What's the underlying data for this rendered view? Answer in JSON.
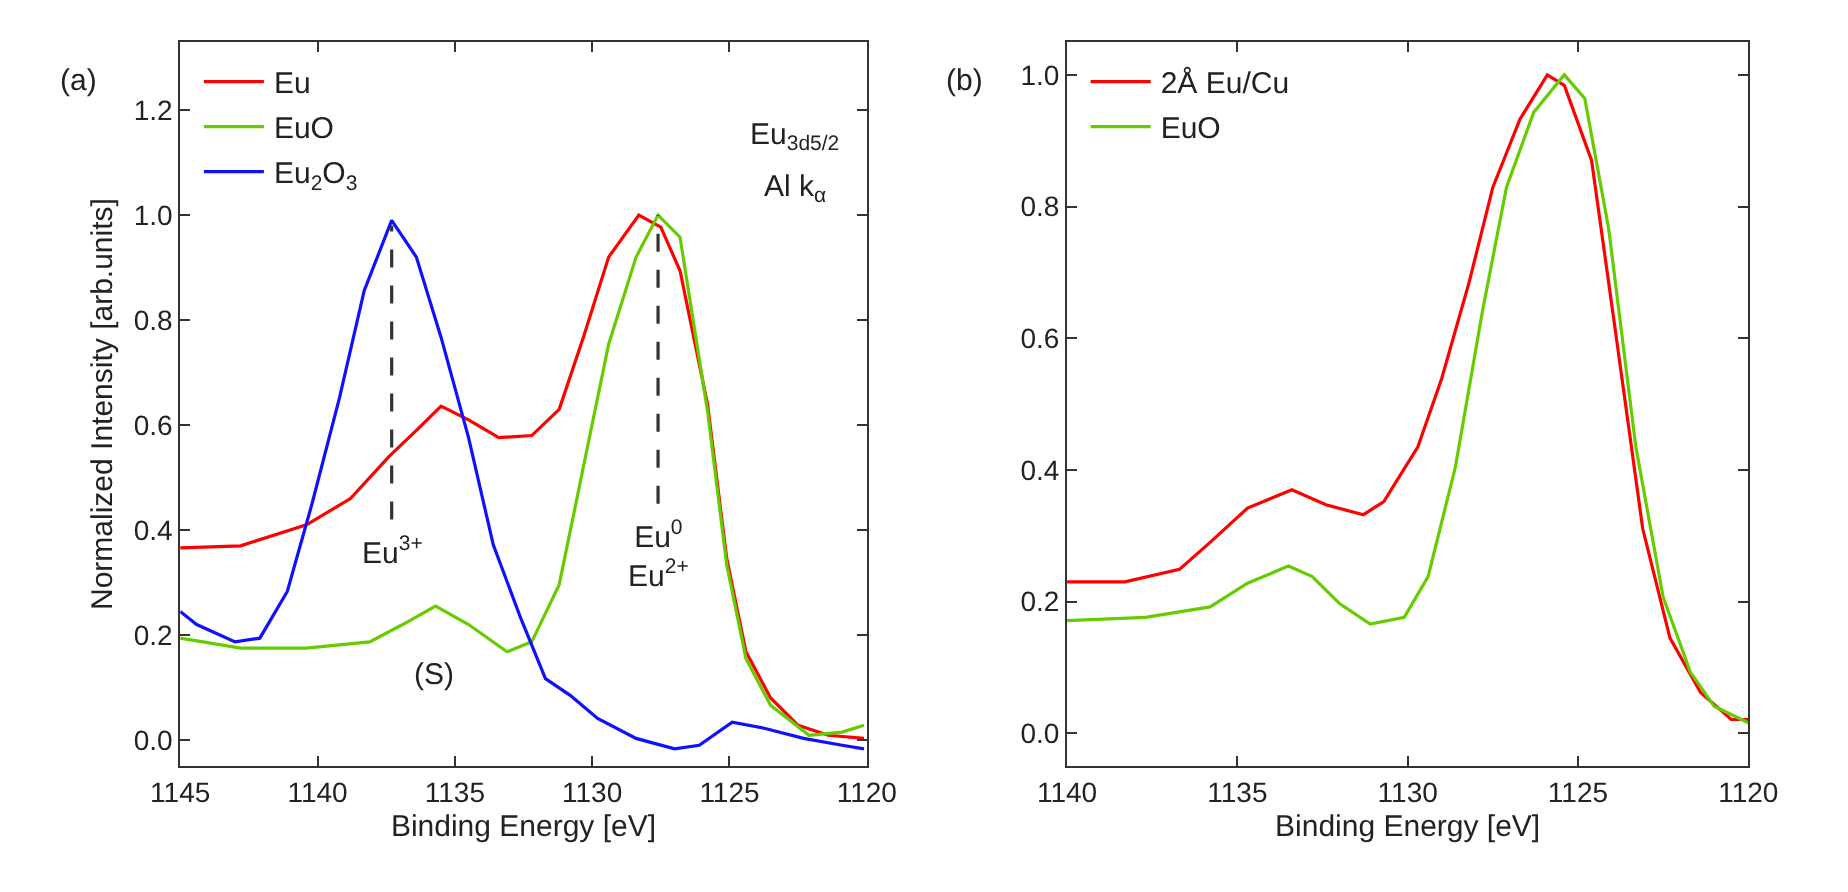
{
  "chart_data": [
    {
      "type": "line",
      "xlabel": "Binding Energy [eV]",
      "ylabel": "Normalized Intensity [arb.units]",
      "xlim": [
        1145,
        1120
      ],
      "ylim": [
        -0.05,
        1.33
      ],
      "xticks": [
        1145,
        1140,
        1135,
        1130,
        1125,
        1120
      ],
      "yticks": [
        {
          "value": 0,
          "label": "0.0"
        },
        {
          "value": 0.2,
          "label": "0.2"
        },
        {
          "value": 0.4,
          "label": "0.4"
        },
        {
          "value": 0.6,
          "label": "0.6"
        },
        {
          "value": 0.8,
          "label": "0.8"
        },
        {
          "value": 1.0,
          "label": "1.0"
        },
        {
          "value": 1.2,
          "label": "1.2"
        }
      ],
      "legend": "top left",
      "marker": "none",
      "series": [
        {
          "name": "Eu",
          "color": "#ff0000",
          "x": [
            1145,
            1142.8,
            1140.4,
            1138.8,
            1137.4,
            1136.4,
            1135.5,
            1134.5,
            1133.4,
            1132.2,
            1131.2,
            1130.3,
            1129.4,
            1128.3,
            1127.5,
            1126.8,
            1125.8,
            1125.1,
            1124.4,
            1123.5,
            1122.5,
            1121.4,
            1120.1
          ],
          "values": [
            0.366,
            0.37,
            0.41,
            0.46,
            0.54,
            0.59,
            0.636,
            0.61,
            0.576,
            0.58,
            0.63,
            0.77,
            0.92,
            1.0,
            0.977,
            0.894,
            0.64,
            0.346,
            0.168,
            0.08,
            0.028,
            0.009,
            0.003
          ]
        },
        {
          "name": "EuO",
          "color": "#66cc00",
          "x": [
            1145,
            1142.8,
            1140.4,
            1138.1,
            1136.9,
            1135.7,
            1134.5,
            1133.1,
            1132.2,
            1131.2,
            1130.3,
            1129.4,
            1128.4,
            1127.6,
            1126.8,
            1125.8,
            1125.1,
            1124.4,
            1123.5,
            1122.1,
            1120.9,
            1120.1
          ],
          "values": [
            0.194,
            0.175,
            0.175,
            0.187,
            0.22,
            0.255,
            0.22,
            0.168,
            0.187,
            0.296,
            0.525,
            0.754,
            0.92,
            1.0,
            0.958,
            0.627,
            0.334,
            0.155,
            0.066,
            0.009,
            0.015,
            0.028
          ]
        },
        {
          "name": "Eu$_{2}$O$_{3}$",
          "color": "#1010ff",
          "x": [
            1145,
            1144.4,
            1143,
            1142.1,
            1141.1,
            1140.2,
            1139.2,
            1138.3,
            1137.3,
            1136.4,
            1135.5,
            1134.5,
            1133.6,
            1132.6,
            1131.7,
            1130.8,
            1129.8,
            1128.4,
            1127,
            1126.1,
            1124.9,
            1123.7,
            1122.3,
            1120.9,
            1120.1
          ],
          "values": [
            0.245,
            0.22,
            0.187,
            0.194,
            0.283,
            0.45,
            0.652,
            0.856,
            0.99,
            0.92,
            0.767,
            0.576,
            0.372,
            0.232,
            0.117,
            0.085,
            0.041,
            0.003,
            -0.017,
            -0.01,
            0.034,
            0.022,
            0.003,
            -0.01,
            -0.017
          ]
        },
        {
          "name": "Eu$^{3+}$",
          "color": "#333333",
          "line_style": "dashed",
          "x": [
            1137.3,
            1137.3
          ],
          "values": [
            0.42,
            0.98
          ]
        },
        {
          "name": "Eu$^{0}$\nEu$^{2+}$",
          "color": "#333333",
          "line_style": "dashed",
          "x": [
            1127.6,
            1127.6
          ],
          "values": [
            0.45,
            1.0
          ]
        }
      ],
      "annotations": [
        "(a)",
        "(S)",
        "Eu$_{3d5/2}$",
        "Al k$_{α}$"
      ]
    },
    {
      "type": "line",
      "xlabel": "Binding Energy [eV]",
      "xlim": [
        1140,
        1120
      ],
      "ylim": [
        -0.05,
        1.05
      ],
      "xticks": [
        1140,
        1135,
        1130,
        1125,
        1120
      ],
      "yticks": [
        {
          "value": 0,
          "label": "0.0"
        },
        {
          "value": 0.2,
          "label": "0.2"
        },
        {
          "value": 0.4,
          "label": "0.4"
        },
        {
          "value": 0.6,
          "label": "0.6"
        },
        {
          "value": 0.8,
          "label": "0.8"
        },
        {
          "value": 1.0,
          "label": "1.0"
        }
      ],
      "legend": "top left",
      "marker": "none",
      "series": [
        {
          "name": "2Å Eu/Cu",
          "color": "#ff0000",
          "x": [
            1140,
            1138.3,
            1136.7,
            1135.8,
            1134.7,
            1133.4,
            1132.4,
            1131.3,
            1130.7,
            1129.7,
            1129,
            1128.2,
            1127.5,
            1126.7,
            1125.9,
            1125.4,
            1124.6,
            1123.9,
            1123.1,
            1122.3,
            1121.4,
            1120.5,
            1120
          ],
          "values": [
            0.23,
            0.23,
            0.249,
            0.29,
            0.342,
            0.37,
            0.347,
            0.332,
            0.352,
            0.435,
            0.539,
            0.684,
            0.829,
            0.933,
            1.0,
            0.984,
            0.87,
            0.611,
            0.311,
            0.145,
            0.062,
            0.021,
            0.021
          ]
        },
        {
          "name": "EuO",
          "color": "#66cc00",
          "x": [
            1140,
            1137.7,
            1135.8,
            1134.7,
            1133.5,
            1132.8,
            1132,
            1131.1,
            1130.1,
            1129.4,
            1128.6,
            1127.8,
            1127.1,
            1126.3,
            1125.4,
            1124.8,
            1124.1,
            1123.3,
            1122.5,
            1121.7,
            1121,
            1120
          ],
          "values": [
            0.171,
            0.176,
            0.192,
            0.228,
            0.254,
            0.238,
            0.197,
            0.166,
            0.176,
            0.238,
            0.404,
            0.642,
            0.829,
            0.943,
            1.0,
            0.964,
            0.767,
            0.435,
            0.207,
            0.093,
            0.041,
            0.016
          ]
        }
      ],
      "annotations": [
        "(b)"
      ]
    }
  ]
}
